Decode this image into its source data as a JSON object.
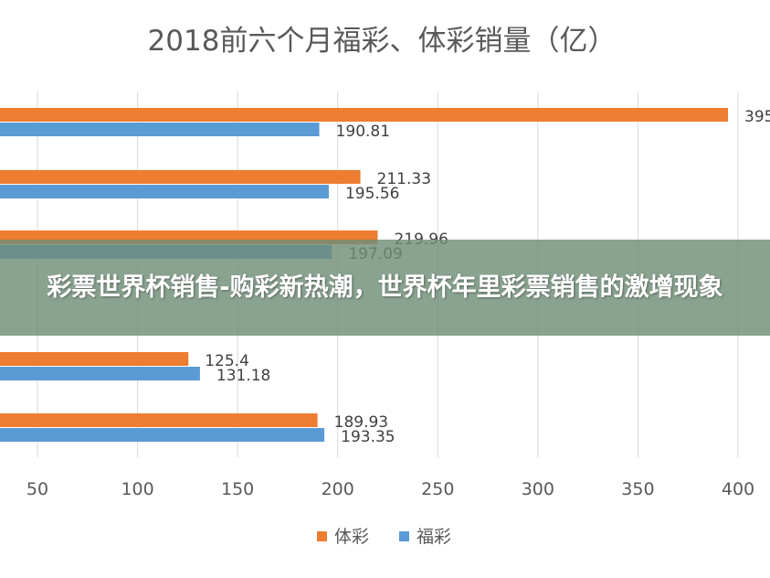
{
  "chart_data": {
    "type": "bar",
    "orientation": "horizontal",
    "title": "2018前六个月福彩、体彩销量（亿）",
    "xlabel": "",
    "ylabel": "",
    "xlim": [
      50,
      400
    ],
    "x_ticks": [
      "50",
      "100",
      "150",
      "200",
      "250",
      "300",
      "350",
      "400"
    ],
    "grid": true,
    "legend_position": "bottom",
    "categories": [
      "",
      "",
      "",
      "",
      ""
    ],
    "series": [
      {
        "name": "体彩",
        "color": "#ED7D31",
        "values": [
          395.0,
          211.33,
          219.96,
          125.4,
          189.93
        ],
        "labels": [
          "395",
          "211.33",
          "219.96",
          "125.4",
          "189.93"
        ]
      },
      {
        "name": "福彩",
        "color": "#5B9BD5",
        "values": [
          190.81,
          195.56,
          197.09,
          131.18,
          193.35
        ],
        "labels": [
          "190.81",
          "195.56",
          "197.09",
          "131.18",
          "193.35"
        ]
      }
    ]
  },
  "overlay": {
    "banner_text": "彩票世界杯销售-购彩新热潮，世界杯年里彩票销售的激增现象"
  }
}
